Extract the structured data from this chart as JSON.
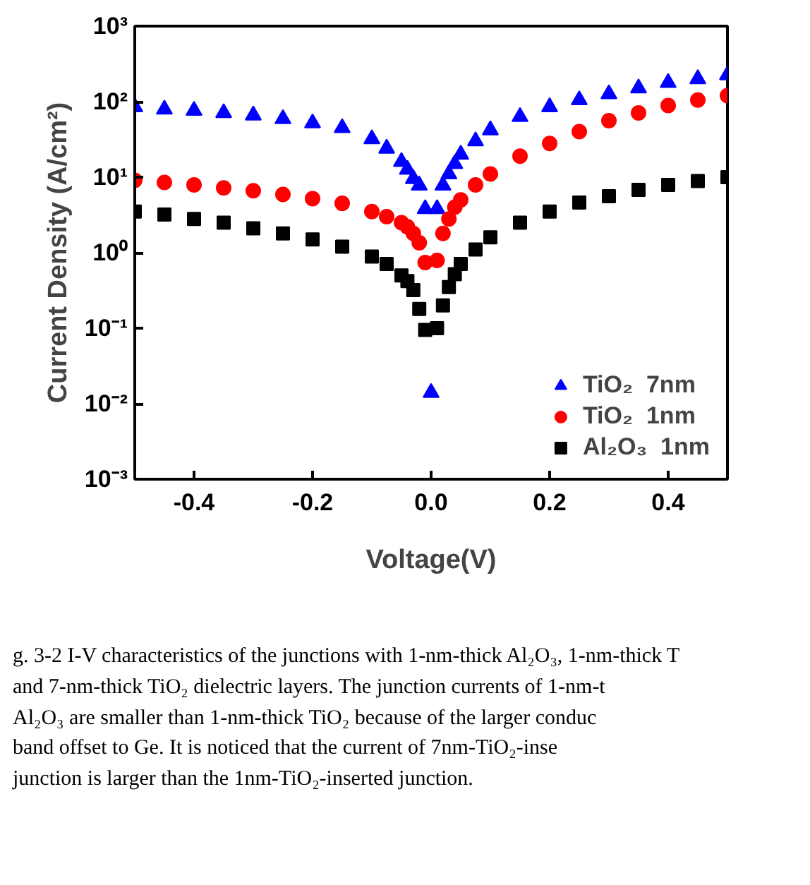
{
  "chart_data": {
    "type": "scatter",
    "xlabel": "Voltage(V)",
    "ylabel": "Current Density (A/cm²)",
    "x": [
      -0.5,
      -0.45,
      -0.4,
      -0.35,
      -0.3,
      -0.25,
      -0.2,
      -0.15,
      -0.1,
      -0.075,
      -0.05,
      -0.04,
      -0.03,
      -0.02,
      -0.01,
      0,
      0.01,
      0.02,
      0.03,
      0.04,
      0.05,
      0.075,
      0.1,
      0.15,
      0.2,
      0.25,
      0.3,
      0.35,
      0.4,
      0.45,
      0.5
    ],
    "series": [
      {
        "name": "TiO₂  7nm",
        "color": "#0000ff",
        "marker": "triangle",
        "values": [
          85,
          79,
          76,
          71,
          66,
          59,
          52,
          45,
          32,
          24,
          16,
          12.6,
          9.5,
          7.8,
          3.8,
          0.014,
          3.8,
          7.8,
          11,
          15,
          20,
          30,
          42,
          63,
          85,
          105,
          126,
          151,
          178,
          200,
          224
        ]
      },
      {
        "name": "TiO₂  1nm",
        "color": "#ff0000",
        "marker": "circle",
        "values": [
          9.1,
          8.5,
          7.9,
          7.2,
          6.6,
          5.9,
          5.2,
          4.5,
          3.5,
          3.0,
          2.5,
          2.2,
          1.8,
          1.35,
          0.74,
          null,
          0.79,
          1.8,
          2.8,
          4.0,
          5.0,
          7.9,
          11,
          19,
          28,
          40,
          56,
          71,
          89,
          105,
          120
        ]
      },
      {
        "name": "Al₂O₃  1nm",
        "color": "#000000",
        "marker": "square",
        "values": [
          3.5,
          3.2,
          2.8,
          2.5,
          2.1,
          1.8,
          1.5,
          1.2,
          0.89,
          0.71,
          0.5,
          0.42,
          0.32,
          0.18,
          0.095,
          null,
          0.1,
          0.2,
          0.35,
          0.52,
          0.71,
          1.1,
          1.6,
          2.5,
          3.5,
          4.6,
          5.6,
          6.8,
          7.9,
          8.9,
          10
        ]
      }
    ],
    "xlim": [
      -0.5,
      0.5
    ],
    "ylim": [
      0.001,
      1000
    ],
    "log": "y",
    "xticks": [
      {
        "value": -0.4,
        "label": "-0.4"
      },
      {
        "value": -0.2,
        "label": "-0.2"
      },
      {
        "value": 0,
        "label": "0.0"
      },
      {
        "value": 0.2,
        "label": "0.2"
      },
      {
        "value": 0.4,
        "label": "0.4"
      }
    ],
    "yticks": [
      {
        "value": 0.001,
        "label": "10⁻³"
      },
      {
        "value": 0.01,
        "label": "10⁻²"
      },
      {
        "value": 0.1,
        "label": "10⁻¹"
      },
      {
        "value": 1,
        "label": "10⁰"
      },
      {
        "value": 10,
        "label": "10¹"
      },
      {
        "value": 100,
        "label": "10²"
      },
      {
        "value": 1000,
        "label": "10³"
      }
    ],
    "grid": false,
    "legend": "bottom right",
    "annotations": [
      "g. 3-2    I-V characteristics of the junctions with 1-nm-thick Al₂O₃, 1-nm-thick T",
      "and 7-nm-thick TiO₂ dielectric layers. The junction currents of 1-nm-t",
      "Al₂O₃ are smaller than 1-nm-thick TiO₂ because of the larger conduc",
      "band offset to Ge. It is noticed that the current of 7nm-TiO₂-inse",
      "junction is larger than the 1nm-TiO₂-inserted junction."
    ]
  }
}
